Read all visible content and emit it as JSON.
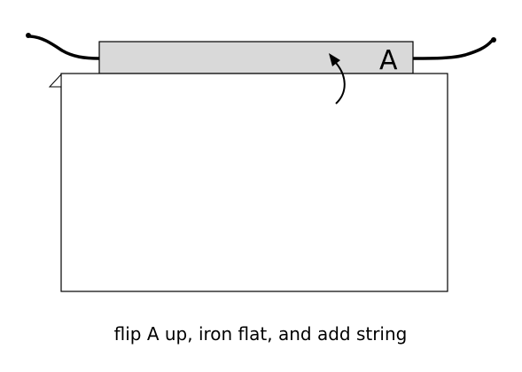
{
  "diagram": {
    "flap_label": "A",
    "caption": "flip A up, iron flat, and add string",
    "colors": {
      "flap_fill": "#d9d9d9",
      "outline": "#000000",
      "background": "#ffffff"
    },
    "icons": {
      "arrow": "curved-arrow-up-icon",
      "string": "string-icon"
    }
  }
}
